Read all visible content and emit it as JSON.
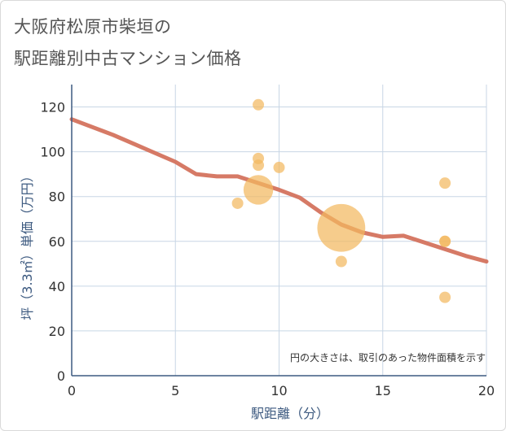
{
  "chart_data": {
    "type": "scatter",
    "title_line1": "大阪府松原市柴垣の",
    "title_line2": "駅距離別中古マンション価格",
    "xlabel": "駅距離（分）",
    "ylabel": "坪（3.3㎡）単価（万円）",
    "xlim": [
      0,
      20
    ],
    "ylim": [
      0,
      130
    ],
    "x_ticks": [
      0,
      5,
      10,
      15,
      20
    ],
    "y_ticks": [
      0,
      20,
      40,
      60,
      80,
      100,
      120
    ],
    "note": "円の大きさは、取引のあった物件面積を示す",
    "colors": {
      "bubble": "#f3b95f",
      "trend": "#d4735e",
      "grid": "#c8d6e5",
      "axis_text": "#3d5a80"
    },
    "points": [
      {
        "x": 9,
        "y": 121,
        "size": 1
      },
      {
        "x": 9,
        "y": 97,
        "size": 1
      },
      {
        "x": 9,
        "y": 94,
        "size": 1
      },
      {
        "x": 10,
        "y": 93,
        "size": 1
      },
      {
        "x": 9,
        "y": 83,
        "size": 2.6
      },
      {
        "x": 8,
        "y": 77,
        "size": 1
      },
      {
        "x": 13,
        "y": 66,
        "size": 4.2
      },
      {
        "x": 13,
        "y": 51,
        "size": 1
      },
      {
        "x": 18,
        "y": 86,
        "size": 1
      },
      {
        "x": 18,
        "y": 60,
        "size": 1
      },
      {
        "x": 18,
        "y": 60,
        "size": 1
      },
      {
        "x": 18,
        "y": 35,
        "size": 1
      }
    ],
    "trend": {
      "x": [
        0,
        1,
        2,
        3,
        4,
        5,
        6,
        7,
        8,
        9,
        10,
        11,
        12,
        13,
        14,
        15,
        16,
        17,
        18,
        19,
        20
      ],
      "y": [
        114.5,
        111,
        107.5,
        103.5,
        99.5,
        95.5,
        90,
        89,
        89,
        86,
        83,
        79.5,
        73,
        67.5,
        64,
        62,
        62.5,
        59.5,
        56.5,
        53.5,
        51
      ]
    }
  }
}
